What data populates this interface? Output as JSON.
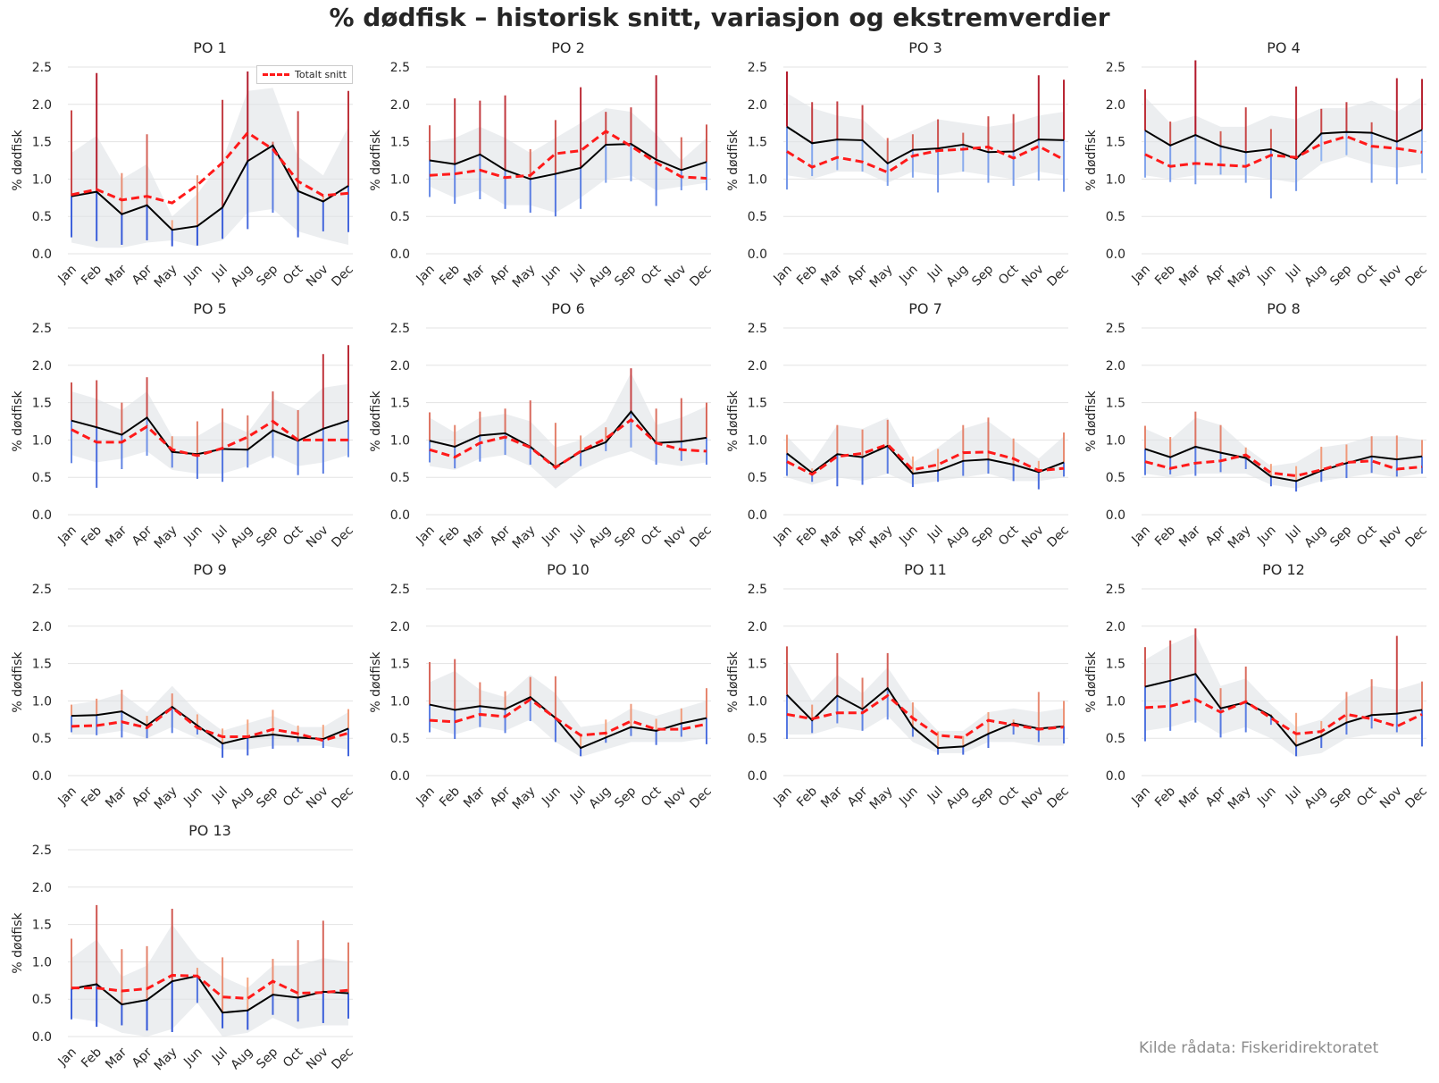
{
  "title": "% dødfisk – historisk snitt, variasjon og ekstremverdier",
  "source": "Kilde rådata: Fiskeridirektoratet",
  "legend_label": "Totalt snitt",
  "colors": {
    "line": "#000000",
    "average": "#ff1a1a",
    "band": "#dfe2e6",
    "grid": "#e3e3e3",
    "max_light": "#f4a582",
    "max_dark": "#b2182b",
    "min_light": "#92b4f0",
    "min_dark": "#2c4fd6"
  },
  "chart_data": {
    "type": "line",
    "categories": [
      "Jan",
      "Feb",
      "Mar",
      "Apr",
      "May",
      "Jun",
      "Jul",
      "Aug",
      "Sep",
      "Oct",
      "Nov",
      "Dec"
    ],
    "ylabel": "% dødfisk",
    "ylim": [
      0,
      2.5
    ],
    "yticks": [
      "0.0",
      "0.5",
      "1.0",
      "1.5",
      "2.0",
      "2.5"
    ],
    "grid": true,
    "legend_position": "top-right of PO 1",
    "panels": [
      {
        "title": "PO 1",
        "line": [
          0.77,
          0.83,
          0.53,
          0.65,
          0.32,
          0.37,
          0.62,
          1.24,
          1.45,
          0.84,
          0.7,
          0.91
        ],
        "avg": [
          0.79,
          0.86,
          0.72,
          0.77,
          0.68,
          0.92,
          1.22,
          1.62,
          1.4,
          0.97,
          0.78,
          0.81
        ],
        "band_lo": [
          0.15,
          0.08,
          0.08,
          0.15,
          0.18,
          0.1,
          0.18,
          0.55,
          0.6,
          0.3,
          0.2,
          0.12
        ],
        "band_hi": [
          1.35,
          1.58,
          1.0,
          1.2,
          0.5,
          0.8,
          1.25,
          2.18,
          2.22,
          1.3,
          1.05,
          1.7
        ],
        "max": [
          1.92,
          2.42,
          1.08,
          1.6,
          0.45,
          1.05,
          2.06,
          2.44,
          1.5,
          1.91,
          0.78,
          2.18
        ],
        "min": [
          0.22,
          0.17,
          0.12,
          0.18,
          0.1,
          0.11,
          0.2,
          0.33,
          0.55,
          0.22,
          0.3,
          0.29
        ]
      },
      {
        "title": "PO 2",
        "line": [
          1.25,
          1.2,
          1.33,
          1.12,
          1.0,
          1.07,
          1.15,
          1.46,
          1.47,
          1.26,
          1.12,
          1.23
        ],
        "avg": [
          1.05,
          1.07,
          1.12,
          1.02,
          1.05,
          1.34,
          1.38,
          1.64,
          1.44,
          1.22,
          1.03,
          1.01
        ],
        "band_lo": [
          0.9,
          0.75,
          0.85,
          0.65,
          0.65,
          0.55,
          0.75,
          1.0,
          1.05,
          0.85,
          0.9,
          0.95
        ],
        "band_hi": [
          1.5,
          1.55,
          1.7,
          1.55,
          1.35,
          1.55,
          1.75,
          1.95,
          1.9,
          1.6,
          1.25,
          1.55
        ],
        "max": [
          1.72,
          2.08,
          2.05,
          2.12,
          1.4,
          1.79,
          2.23,
          1.9,
          1.96,
          2.39,
          1.56,
          1.73
        ],
        "min": [
          0.76,
          0.67,
          0.73,
          0.6,
          0.55,
          0.5,
          0.6,
          0.95,
          0.97,
          0.64,
          0.85,
          0.85
        ]
      },
      {
        "title": "PO 3",
        "line": [
          1.7,
          1.48,
          1.53,
          1.52,
          1.21,
          1.39,
          1.41,
          1.46,
          1.36,
          1.37,
          1.53,
          1.52
        ],
        "avg": [
          1.37,
          1.16,
          1.29,
          1.23,
          1.09,
          1.31,
          1.38,
          1.4,
          1.43,
          1.28,
          1.44,
          1.26
        ],
        "band_lo": [
          1.05,
          1.0,
          1.1,
          1.1,
          0.95,
          1.1,
          1.05,
          1.1,
          1.05,
          1.0,
          1.1,
          1.05
        ],
        "band_hi": [
          2.15,
          1.95,
          1.85,
          1.8,
          1.5,
          1.65,
          1.8,
          1.75,
          1.7,
          1.75,
          1.85,
          1.9
        ],
        "max": [
          2.44,
          2.03,
          2.04,
          1.99,
          1.55,
          1.6,
          1.8,
          1.62,
          1.84,
          1.87,
          2.39,
          2.33
        ],
        "min": [
          0.86,
          1.04,
          1.12,
          1.1,
          0.91,
          1.02,
          0.82,
          1.1,
          0.95,
          0.91,
          0.98,
          0.83
        ]
      },
      {
        "title": "PO 4",
        "line": [
          1.65,
          1.45,
          1.59,
          1.44,
          1.36,
          1.4,
          1.27,
          1.61,
          1.63,
          1.62,
          1.5,
          1.66
        ],
        "avg": [
          1.33,
          1.17,
          1.21,
          1.19,
          1.17,
          1.32,
          1.29,
          1.47,
          1.57,
          1.44,
          1.41,
          1.36
        ],
        "band_lo": [
          1.05,
          1.0,
          1.05,
          1.05,
          1.05,
          1.0,
          0.95,
          1.2,
          1.3,
          1.2,
          1.15,
          1.2
        ],
        "band_hi": [
          2.1,
          1.75,
          1.85,
          1.7,
          1.7,
          1.85,
          1.8,
          1.95,
          1.95,
          2.05,
          1.9,
          2.1
        ],
        "max": [
          2.2,
          1.77,
          2.59,
          1.64,
          1.96,
          1.67,
          2.24,
          1.94,
          2.03,
          1.76,
          2.35,
          2.34
        ],
        "min": [
          1.02,
          0.96,
          0.93,
          1.06,
          0.95,
          0.74,
          0.84,
          1.24,
          1.32,
          0.95,
          0.93,
          1.08
        ]
      },
      {
        "title": "PO 5",
        "line": [
          1.26,
          1.17,
          1.07,
          1.3,
          0.84,
          0.81,
          0.88,
          0.87,
          1.13,
          0.99,
          1.15,
          1.26
        ],
        "avg": [
          1.14,
          0.97,
          0.97,
          1.18,
          0.87,
          0.79,
          0.89,
          1.04,
          1.25,
          1.0,
          1.0,
          1.0
        ],
        "band_lo": [
          0.8,
          0.7,
          0.75,
          0.85,
          0.6,
          0.55,
          0.55,
          0.65,
          0.8,
          0.65,
          0.7,
          0.8
        ],
        "band_hi": [
          1.65,
          1.55,
          1.4,
          1.65,
          1.05,
          1.05,
          1.25,
          1.1,
          1.55,
          1.4,
          1.7,
          1.75
        ],
        "max": [
          1.77,
          1.8,
          1.5,
          1.84,
          1.05,
          1.25,
          1.42,
          1.33,
          1.65,
          1.4,
          2.15,
          2.27
        ],
        "min": [
          0.69,
          0.36,
          0.61,
          0.79,
          0.63,
          0.48,
          0.44,
          0.63,
          0.76,
          0.53,
          0.55,
          0.77
        ]
      },
      {
        "title": "PO 6",
        "line": [
          0.99,
          0.91,
          1.06,
          1.09,
          0.91,
          0.64,
          0.84,
          0.97,
          1.38,
          0.96,
          0.98,
          1.03
        ],
        "avg": [
          0.87,
          0.77,
          0.96,
          1.04,
          0.9,
          0.63,
          0.85,
          1.02,
          1.27,
          0.96,
          0.87,
          0.85
        ],
        "band_lo": [
          0.65,
          0.6,
          0.75,
          0.8,
          0.65,
          0.35,
          0.6,
          0.75,
          0.85,
          0.7,
          0.65,
          0.7
        ],
        "band_hi": [
          1.3,
          1.1,
          1.3,
          1.35,
          1.25,
          0.9,
          1.0,
          1.25,
          1.9,
          1.2,
          1.3,
          1.45
        ],
        "max": [
          1.37,
          1.2,
          1.38,
          1.42,
          1.53,
          1.23,
          1.06,
          1.17,
          1.96,
          1.42,
          1.56,
          1.5
        ],
        "min": [
          0.7,
          0.62,
          0.71,
          0.8,
          0.67,
          0.6,
          0.65,
          0.85,
          0.9,
          0.67,
          0.72,
          0.67
        ]
      },
      {
        "title": "PO 7",
        "line": [
          0.82,
          0.56,
          0.81,
          0.77,
          0.92,
          0.55,
          0.59,
          0.72,
          0.74,
          0.67,
          0.57,
          0.7
        ],
        "avg": [
          0.71,
          0.54,
          0.78,
          0.82,
          0.94,
          0.6,
          0.67,
          0.83,
          0.84,
          0.75,
          0.59,
          0.62
        ],
        "band_lo": [
          0.5,
          0.4,
          0.5,
          0.45,
          0.55,
          0.4,
          0.45,
          0.5,
          0.55,
          0.45,
          0.45,
          0.5
        ],
        "band_hi": [
          1.05,
          0.7,
          1.2,
          1.15,
          1.3,
          0.7,
          0.9,
          1.15,
          1.25,
          1.0,
          0.75,
          1.05
        ],
        "max": [
          1.07,
          0.62,
          1.2,
          1.14,
          1.27,
          0.78,
          0.88,
          1.2,
          1.3,
          1.02,
          0.72,
          1.1
        ],
        "min": [
          0.52,
          0.44,
          0.38,
          0.4,
          0.55,
          0.37,
          0.44,
          0.52,
          0.55,
          0.45,
          0.34,
          0.51
        ]
      },
      {
        "title": "PO 8",
        "line": [
          0.88,
          0.77,
          0.91,
          0.83,
          0.76,
          0.51,
          0.45,
          0.59,
          0.69,
          0.78,
          0.74,
          0.78
        ],
        "avg": [
          0.71,
          0.62,
          0.69,
          0.72,
          0.8,
          0.56,
          0.52,
          0.6,
          0.7,
          0.72,
          0.61,
          0.64
        ],
        "band_lo": [
          0.55,
          0.5,
          0.55,
          0.55,
          0.55,
          0.4,
          0.35,
          0.45,
          0.5,
          0.55,
          0.5,
          0.55
        ],
        "band_hi": [
          1.15,
          1.0,
          1.3,
          1.2,
          0.9,
          0.65,
          0.7,
          0.9,
          0.95,
          1.05,
          1.05,
          1.0
        ],
        "max": [
          1.19,
          1.04,
          1.38,
          1.2,
          0.9,
          0.68,
          0.65,
          0.91,
          0.94,
          1.05,
          1.06,
          1.0
        ],
        "min": [
          0.53,
          0.54,
          0.52,
          0.57,
          0.61,
          0.38,
          0.31,
          0.44,
          0.49,
          0.56,
          0.51,
          0.55
        ]
      },
      {
        "title": "PO 9",
        "line": [
          0.8,
          0.81,
          0.86,
          0.67,
          0.92,
          0.67,
          0.43,
          0.51,
          0.55,
          0.51,
          0.49,
          0.63
        ],
        "avg": [
          0.66,
          0.67,
          0.72,
          0.64,
          0.91,
          0.64,
          0.52,
          0.52,
          0.62,
          0.56,
          0.47,
          0.57
        ],
        "band_lo": [
          0.55,
          0.55,
          0.6,
          0.5,
          0.65,
          0.5,
          0.35,
          0.35,
          0.4,
          0.4,
          0.4,
          0.35
        ],
        "band_hi": [
          0.95,
          1.0,
          1.1,
          0.85,
          1.2,
          0.85,
          0.6,
          0.7,
          0.8,
          0.65,
          0.65,
          0.85
        ],
        "max": [
          0.95,
          1.03,
          1.15,
          0.8,
          1.1,
          0.82,
          0.63,
          0.75,
          0.88,
          0.67,
          0.68,
          0.89
        ],
        "min": [
          0.58,
          0.54,
          0.51,
          0.5,
          0.57,
          0.55,
          0.24,
          0.27,
          0.36,
          0.45,
          0.37,
          0.26
        ]
      },
      {
        "title": "PO 10",
        "line": [
          0.95,
          0.88,
          0.93,
          0.89,
          1.05,
          0.77,
          0.37,
          0.51,
          0.65,
          0.6,
          0.7,
          0.77
        ],
        "avg": [
          0.74,
          0.72,
          0.82,
          0.79,
          1.02,
          0.77,
          0.54,
          0.57,
          0.73,
          0.62,
          0.62,
          0.69
        ],
        "band_lo": [
          0.65,
          0.55,
          0.65,
          0.6,
          0.75,
          0.45,
          0.25,
          0.35,
          0.45,
          0.45,
          0.45,
          0.5
        ],
        "band_hi": [
          1.25,
          1.4,
          1.15,
          1.05,
          1.35,
          1.1,
          0.65,
          0.7,
          0.9,
          0.8,
          0.9,
          1.0
        ],
        "max": [
          1.52,
          1.56,
          1.25,
          1.13,
          1.32,
          1.33,
          0.54,
          0.75,
          0.96,
          0.76,
          0.9,
          1.17
        ],
        "min": [
          0.58,
          0.49,
          0.65,
          0.57,
          0.73,
          0.45,
          0.26,
          0.44,
          0.53,
          0.41,
          0.52,
          0.42
        ]
      },
      {
        "title": "PO 11",
        "line": [
          1.08,
          0.74,
          1.07,
          0.89,
          1.17,
          0.65,
          0.37,
          0.39,
          0.56,
          0.7,
          0.63,
          0.66
        ],
        "avg": [
          0.82,
          0.76,
          0.84,
          0.84,
          1.07,
          0.77,
          0.54,
          0.51,
          0.74,
          0.68,
          0.62,
          0.65
        ],
        "band_lo": [
          0.55,
          0.55,
          0.65,
          0.6,
          0.8,
          0.45,
          0.3,
          0.3,
          0.45,
          0.45,
          0.4,
          0.4
        ],
        "band_hi": [
          1.55,
          1.0,
          1.35,
          1.1,
          1.45,
          0.95,
          0.6,
          0.6,
          0.85,
          0.9,
          0.85,
          0.9
        ],
        "max": [
          1.73,
          0.95,
          1.64,
          1.31,
          1.64,
          0.98,
          0.59,
          0.53,
          0.85,
          0.75,
          1.12,
          1.0
        ],
        "min": [
          0.49,
          0.57,
          0.7,
          0.6,
          0.75,
          0.52,
          0.28,
          0.28,
          0.37,
          0.55,
          0.45,
          0.43
        ]
      },
      {
        "title": "PO 12",
        "line": [
          1.19,
          1.27,
          1.36,
          0.9,
          0.98,
          0.8,
          0.4,
          0.53,
          0.71,
          0.81,
          0.83,
          0.88
        ],
        "avg": [
          0.91,
          0.93,
          1.02,
          0.85,
          0.99,
          0.77,
          0.56,
          0.59,
          0.82,
          0.76,
          0.66,
          0.82
        ],
        "band_lo": [
          0.6,
          0.65,
          0.75,
          0.55,
          0.65,
          0.5,
          0.25,
          0.3,
          0.5,
          0.55,
          0.55,
          0.55
        ],
        "band_hi": [
          1.55,
          1.75,
          1.9,
          1.2,
          1.3,
          0.95,
          0.65,
          0.75,
          1.05,
          1.2,
          1.15,
          1.25
        ],
        "max": [
          1.72,
          1.81,
          1.97,
          1.17,
          1.46,
          0.82,
          0.84,
          0.73,
          1.12,
          1.29,
          1.87,
          1.26
        ],
        "min": [
          0.46,
          0.6,
          0.71,
          0.51,
          0.58,
          0.68,
          0.26,
          0.37,
          0.55,
          0.63,
          0.58,
          0.39
        ]
      },
      {
        "title": "PO 13",
        "line": [
          0.64,
          0.7,
          0.43,
          0.49,
          0.74,
          0.81,
          0.32,
          0.35,
          0.56,
          0.52,
          0.6,
          0.58
        ],
        "avg": [
          0.65,
          0.65,
          0.61,
          0.64,
          0.82,
          0.81,
          0.53,
          0.51,
          0.74,
          0.58,
          0.59,
          0.62
        ],
        "band_lo": [
          0.25,
          0.2,
          0.05,
          0.0,
          0.1,
          0.45,
          0.0,
          0.05,
          0.25,
          0.1,
          0.15,
          0.15
        ],
        "band_hi": [
          1.05,
          1.3,
          0.8,
          0.95,
          1.5,
          1.05,
          0.8,
          0.65,
          0.95,
          0.95,
          1.05,
          1.0
        ],
        "max": [
          1.31,
          1.76,
          1.17,
          1.21,
          1.71,
          0.92,
          1.06,
          0.79,
          1.04,
          1.29,
          1.55,
          1.26
        ],
        "min": [
          0.23,
          0.13,
          0.15,
          0.08,
          0.06,
          0.45,
          0.11,
          0.09,
          0.29,
          0.2,
          0.18,
          0.24
        ]
      }
    ]
  }
}
